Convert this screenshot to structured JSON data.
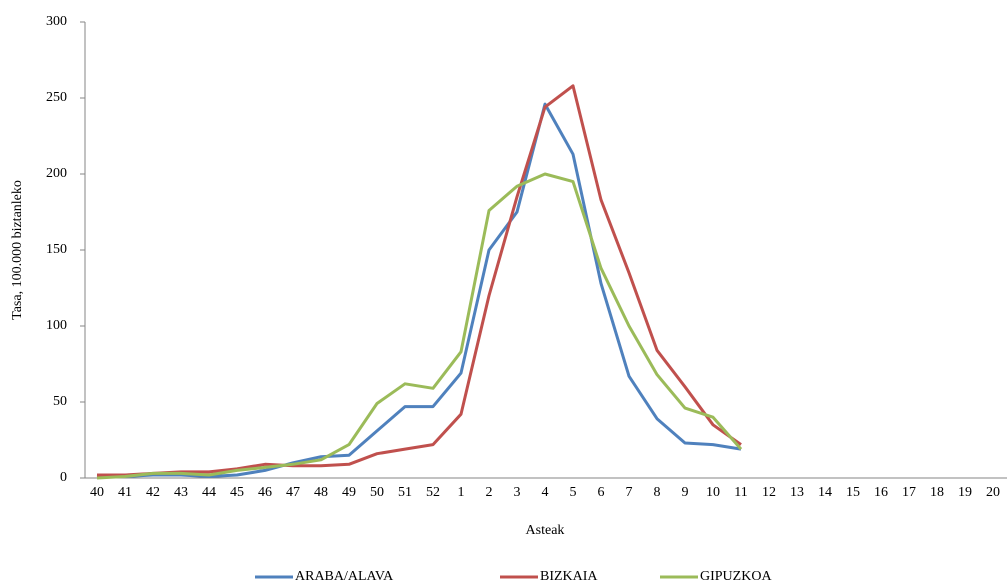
{
  "chart_data": {
    "type": "line",
    "y_label": "Tasa, 100.000 biztanleko",
    "x_label": "Asteak",
    "categories": [
      "40",
      "41",
      "42",
      "43",
      "44",
      "45",
      "46",
      "47",
      "48",
      "49",
      "50",
      "51",
      "52",
      "1",
      "2",
      "3",
      "4",
      "5",
      "6",
      "7",
      "8",
      "9",
      "10",
      "11",
      "12",
      "13",
      "14",
      "15",
      "16",
      "17",
      "18",
      "19",
      "20"
    ],
    "series": [
      {
        "name": "ARABA/ALAVA",
        "color": "#4f81bd",
        "values": [
          2,
          1,
          2,
          2,
          1,
          2,
          5,
          10,
          14,
          15,
          31,
          47,
          47,
          69,
          150,
          175,
          246,
          213,
          128,
          67,
          39,
          23,
          22,
          19,
          null,
          null,
          null,
          null,
          null,
          null,
          null,
          null,
          null
        ]
      },
      {
        "name": "BIZKAIA",
        "color": "#c0504d",
        "values": [
          2,
          2,
          3,
          4,
          4,
          6,
          9,
          8,
          8,
          9,
          16,
          19,
          22,
          42,
          120,
          185,
          244,
          258,
          183,
          135,
          84,
          60,
          35,
          22,
          null,
          null,
          null,
          null,
          null,
          null,
          null,
          null,
          null
        ]
      },
      {
        "name": "GIPUZKOA",
        "color": "#9bbb59",
        "values": [
          0,
          1,
          3,
          3,
          2,
          5,
          7,
          9,
          12,
          22,
          49,
          62,
          59,
          83,
          176,
          192,
          200,
          195,
          138,
          100,
          68,
          46,
          40,
          19,
          null,
          null,
          null,
          null,
          null,
          null,
          null,
          null,
          null
        ]
      }
    ],
    "ylim": [
      0,
      300
    ],
    "yticks": [
      0,
      50,
      100,
      150,
      200,
      250,
      300
    ],
    "grid": false,
    "legend": "bottom"
  }
}
